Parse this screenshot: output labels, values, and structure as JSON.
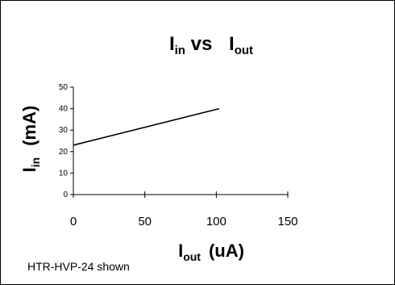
{
  "chart_data": {
    "type": "line",
    "title": {
      "main": "I",
      "main_sub": "in",
      "middle": " vs ",
      "end": "I",
      "end_sub": "out"
    },
    "xlabel": {
      "main": "I",
      "sub": "out",
      "unit": "(uA)"
    },
    "ylabel": {
      "main": "I",
      "sub": "in",
      "unit": "(mA)"
    },
    "xlim": [
      0,
      150
    ],
    "ylim": [
      0,
      50
    ],
    "x_ticks": [
      0,
      50,
      100,
      150
    ],
    "y_ticks": [
      0,
      10,
      20,
      30,
      40,
      50
    ],
    "grid": false,
    "series": [
      {
        "x": [
          0,
          102
        ],
        "y": [
          23,
          40
        ]
      }
    ],
    "line_color": "#000000"
  },
  "note": "HTR-HVP-24 shown"
}
